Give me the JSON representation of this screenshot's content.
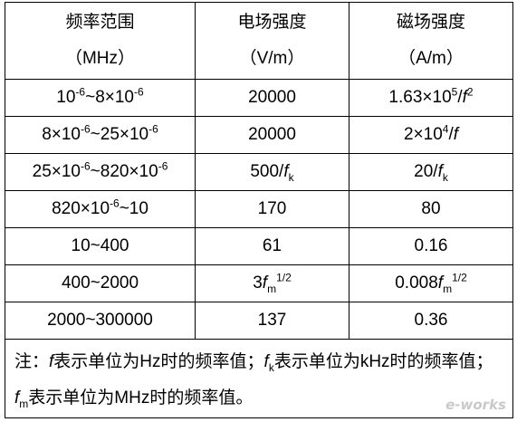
{
  "table": {
    "header": [
      [
        "频率范围",
        "（MHz）"
      ],
      [
        "电场强度",
        "（V/m）"
      ],
      [
        "磁场强度",
        "（A/m）"
      ]
    ],
    "rows": [
      [
        [
          "10",
          {
            "sup": "-6"
          },
          "~8×10",
          {
            "sup": "-6"
          }
        ],
        [
          "20000"
        ],
        [
          "1.63×10",
          {
            "sup": "5"
          },
          "/",
          {
            "i": "f"
          },
          {
            "sup": "2"
          }
        ]
      ],
      [
        [
          "8×10",
          {
            "sup": "-6"
          },
          "~25×10",
          {
            "sup": "-6"
          }
        ],
        [
          "20000"
        ],
        [
          "2×10",
          {
            "sup": "4"
          },
          "/",
          {
            "i": "f"
          }
        ]
      ],
      [
        [
          "25×10",
          {
            "sup": "-6"
          },
          "~820×10",
          {
            "sup": "-6"
          }
        ],
        [
          "500/",
          {
            "i": "f"
          },
          {
            "sub": "k"
          }
        ],
        [
          "20/",
          {
            "i": "f"
          },
          {
            "sub": "k"
          }
        ]
      ],
      [
        [
          "820×10",
          {
            "sup": "-6"
          },
          "~10"
        ],
        [
          "170"
        ],
        [
          "80"
        ]
      ],
      [
        [
          "10~400"
        ],
        [
          "61"
        ],
        [
          "0.16"
        ]
      ],
      [
        [
          "400~2000"
        ],
        [
          "3",
          {
            "i": "f"
          },
          {
            "sub": "m"
          },
          {
            "sup": "1/2"
          }
        ],
        [
          "0.008",
          {
            "i": "f"
          },
          {
            "sub": "m"
          },
          {
            "sup": "1/2"
          }
        ]
      ],
      [
        [
          "2000~300000"
        ],
        [
          "137"
        ],
        [
          "0.36"
        ]
      ]
    ],
    "note": [
      "注：",
      {
        "i": "f"
      },
      "表示单位为Hz时的频率值；",
      {
        "i": "f"
      },
      {
        "sub": "k"
      },
      "表示单位为kHz时的频率值；",
      {
        "i": "f"
      },
      {
        "sub": "m"
      },
      "表示单位为MHz时的频率值。"
    ]
  },
  "watermark": "e-works"
}
